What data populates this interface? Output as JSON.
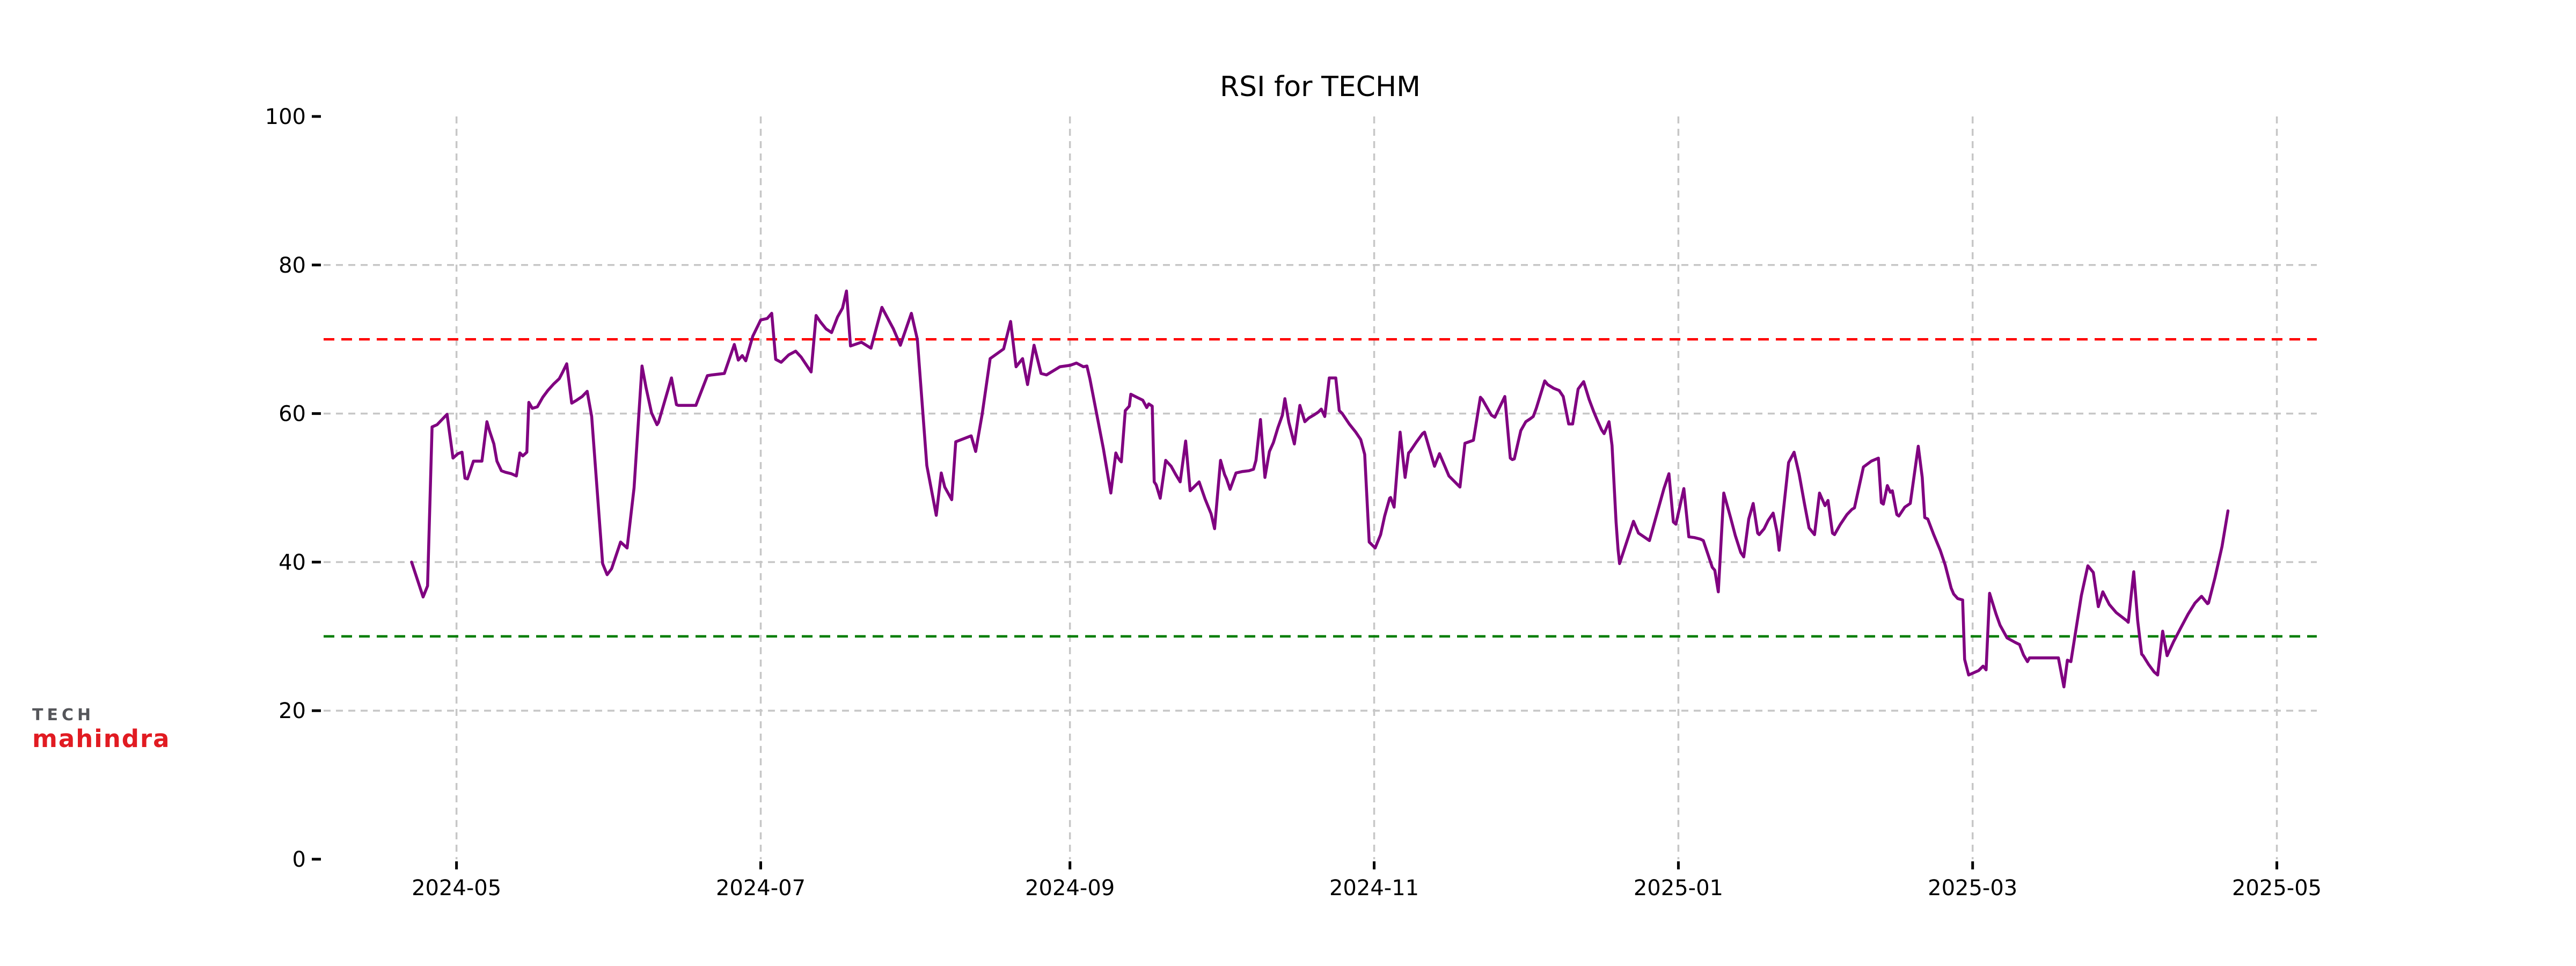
{
  "page": {
    "background": "#ffffff"
  },
  "logo": {
    "line1": "TECH",
    "line2": "mahindra",
    "line1_color": "#55565a",
    "line2_color": "#e11b22"
  },
  "chart_data": {
    "type": "line",
    "title": "RSI for TECHM",
    "series_name": "RSI",
    "line_color": "#800080",
    "grid": true,
    "gridline_color": "#c7c7c7",
    "overbought_line": {
      "value": 70,
      "color": "#ff0000",
      "style": "dashed"
    },
    "oversold_line": {
      "value": 30,
      "color": "#007d00",
      "style": "dashed"
    },
    "y_axis": {
      "min": 0,
      "max": 100,
      "tick_values": [
        0,
        20,
        40,
        60,
        80,
        100
      ],
      "gridline_values": [
        20,
        40,
        60,
        80
      ]
    },
    "x_axis": {
      "start_date": "2024-04-22",
      "end_date": "2025-04-21",
      "unit": "days_since_start_date",
      "ticks": [
        {
          "label": "2024-05",
          "date": "2024-05-01"
        },
        {
          "label": "2024-07",
          "date": "2024-07-01"
        },
        {
          "label": "2024-09",
          "date": "2024-09-01"
        },
        {
          "label": "2024-11",
          "date": "2024-11-01"
        },
        {
          "label": "2025-01",
          "date": "2025-01-01"
        },
        {
          "label": "2025-03",
          "date": "2025-03-01"
        },
        {
          "label": "2025-05",
          "date": "2025-05-01"
        }
      ]
    },
    "points": [
      [
        0,
        40
      ],
      [
        2.3,
        35.3
      ],
      [
        3.2,
        36.8
      ],
      [
        4.1,
        58.2
      ],
      [
        5.1,
        58.5
      ],
      [
        7.1,
        59.9
      ],
      [
        8.3,
        54
      ],
      [
        9.3,
        54.6
      ],
      [
        10.1,
        54.8
      ],
      [
        10.7,
        51.3
      ],
      [
        11.2,
        51.2
      ],
      [
        12.4,
        53.6
      ],
      [
        14.1,
        53.6
      ],
      [
        15.1,
        58.9
      ],
      [
        15.6,
        57.7
      ],
      [
        16.5,
        55.9
      ],
      [
        17.1,
        53.6
      ],
      [
        18,
        52.3
      ],
      [
        18.8,
        52.1
      ],
      [
        20,
        51.9
      ],
      [
        21,
        51.6
      ],
      [
        21.7,
        54.7
      ],
      [
        22.3,
        54.3
      ],
      [
        23.1,
        54.8
      ],
      [
        23.5,
        61.5
      ],
      [
        24.2,
        60.7
      ],
      [
        25.2,
        60.9
      ],
      [
        26.3,
        62.2
      ],
      [
        27.3,
        63.1
      ],
      [
        28.5,
        64
      ],
      [
        29.6,
        64.7
      ],
      [
        30.3,
        65.6
      ],
      [
        31.1,
        66.7
      ],
      [
        32.1,
        61.4
      ],
      [
        33.1,
        61.8
      ],
      [
        34.2,
        62.3
      ],
      [
        35.2,
        63
      ],
      [
        36.1,
        59.6
      ],
      [
        38.3,
        39.8
      ],
      [
        39.2,
        38.3
      ],
      [
        40.1,
        39.1
      ],
      [
        41.9,
        42.7
      ],
      [
        43.2,
        41.9
      ],
      [
        44.6,
        50
      ],
      [
        46.2,
        66.4
      ],
      [
        47,
        63.5
      ],
      [
        48.1,
        60.1
      ],
      [
        49.2,
        58.5
      ],
      [
        49.5,
        58.8
      ],
      [
        52.1,
        64.8
      ],
      [
        53.1,
        61.2
      ],
      [
        53.5,
        61.1
      ],
      [
        57,
        61.1
      ],
      [
        59.3,
        65.1
      ],
      [
        60.2,
        65.2
      ],
      [
        62.7,
        65.4
      ],
      [
        64.7,
        69.3
      ],
      [
        65.5,
        67.2
      ],
      [
        66.3,
        67.8
      ],
      [
        67,
        67.1
      ],
      [
        68.4,
        70.4
      ],
      [
        70,
        72.6
      ],
      [
        71.3,
        72.8
      ],
      [
        72.2,
        73.5
      ],
      [
        73,
        67.3
      ],
      [
        74.1,
        66.9
      ],
      [
        75.6,
        67.9
      ],
      [
        77,
        68.4
      ],
      [
        78.1,
        67.6
      ],
      [
        80.1,
        65.6
      ],
      [
        81.1,
        73.2
      ],
      [
        81.9,
        72.4
      ],
      [
        83.1,
        71.4
      ],
      [
        84.2,
        70.9
      ],
      [
        85.4,
        73
      ],
      [
        86.4,
        74.2
      ],
      [
        87.2,
        76.5
      ],
      [
        88,
        69.1
      ],
      [
        90.2,
        69.6
      ],
      [
        92.1,
        68.8
      ],
      [
        94.3,
        74.3
      ],
      [
        96.6,
        71.4
      ],
      [
        98,
        69.2
      ],
      [
        100.2,
        73.5
      ],
      [
        101.4,
        70
      ],
      [
        103.3,
        53
      ],
      [
        105.2,
        46.3
      ],
      [
        106.2,
        52
      ],
      [
        106.9,
        50.1
      ],
      [
        108.3,
        48.4
      ],
      [
        109.1,
        56.2
      ],
      [
        112.2,
        57
      ],
      [
        113.1,
        54.9
      ],
      [
        114.4,
        59.9
      ],
      [
        116,
        67.4
      ],
      [
        118.7,
        68.7
      ],
      [
        120.1,
        72.4
      ],
      [
        121.2,
        66.3
      ],
      [
        122.5,
        67.4
      ],
      [
        123.5,
        63.9
      ],
      [
        124.8,
        69.2
      ],
      [
        126.2,
        65.4
      ],
      [
        127.3,
        65.2
      ],
      [
        130,
        66.3
      ],
      [
        132.1,
        66.5
      ],
      [
        133.3,
        66.8
      ],
      [
        134.7,
        66.3
      ],
      [
        135.4,
        66.4
      ],
      [
        136,
        64.7
      ],
      [
        137.4,
        59.8
      ],
      [
        138.7,
        55.3
      ],
      [
        140.2,
        49.3
      ],
      [
        141.2,
        54.7
      ],
      [
        141.6,
        54.1
      ],
      [
        142,
        53.7
      ],
      [
        142.3,
        53.5
      ],
      [
        143.1,
        60.4
      ],
      [
        143.9,
        61
      ],
      [
        144.2,
        62.6
      ],
      [
        145.4,
        62.2
      ],
      [
        146.6,
        61.8
      ],
      [
        147.4,
        60.8
      ],
      [
        147.8,
        61.3
      ],
      [
        148.5,
        61
      ],
      [
        148.9,
        50.8
      ],
      [
        149.3,
        50.4
      ],
      [
        150.1,
        48.6
      ],
      [
        151.2,
        53.7
      ],
      [
        152.3,
        52.9
      ],
      [
        153.2,
        51.8
      ],
      [
        154.1,
        50.8
      ],
      [
        155.2,
        56.3
      ],
      [
        156.1,
        49.6
      ],
      [
        157,
        50.2
      ],
      [
        157.9,
        50.8
      ],
      [
        159.1,
        48.5
      ],
      [
        160.3,
        46.5
      ],
      [
        161,
        44.5
      ],
      [
        162.2,
        53.7
      ],
      [
        163,
        51.8
      ],
      [
        163.4,
        51.2
      ],
      [
        164.1,
        49.8
      ],
      [
        165.3,
        52
      ],
      [
        166.6,
        52.2
      ],
      [
        167.9,
        52.3
      ],
      [
        168.8,
        52.5
      ],
      [
        169.3,
        53.7
      ],
      [
        170.2,
        59.2
      ],
      [
        171.1,
        51.4
      ],
      [
        172,
        54.9
      ],
      [
        172.8,
        56.1
      ],
      [
        173.7,
        58.1
      ],
      [
        174.6,
        59.8
      ],
      [
        175.1,
        62
      ],
      [
        175.9,
        58.8
      ],
      [
        177,
        55.9
      ],
      [
        178.1,
        61.1
      ],
      [
        179.1,
        58.9
      ],
      [
        179.9,
        59.4
      ],
      [
        180.9,
        59.8
      ],
      [
        181.8,
        60.2
      ],
      [
        182.4,
        60.6
      ],
      [
        183.1,
        59.6
      ],
      [
        184,
        64.8
      ],
      [
        185.3,
        64.8
      ],
      [
        186,
        60.4
      ],
      [
        186.6,
        60
      ],
      [
        188,
        58.6
      ],
      [
        189.3,
        57.5
      ],
      [
        190.3,
        56.5
      ],
      [
        191.1,
        54.5
      ],
      [
        192,
        42.7
      ],
      [
        193.2,
        41.9
      ],
      [
        194.3,
        43.7
      ],
      [
        195.1,
        46.2
      ],
      [
        196.1,
        48.6
      ],
      [
        196.3,
        48.7
      ],
      [
        197,
        47.4
      ],
      [
        198.2,
        57.5
      ],
      [
        199.2,
        51.4
      ],
      [
        199.9,
        54.7
      ],
      [
        200.2,
        54.9
      ],
      [
        201.4,
        56.1
      ],
      [
        202.7,
        57.3
      ],
      [
        203.1,
        57.5
      ],
      [
        205.1,
        52.9
      ],
      [
        206.1,
        54.6
      ],
      [
        208,
        51.6
      ],
      [
        210.2,
        50.1
      ],
      [
        211.2,
        56
      ],
      [
        212.9,
        56.4
      ],
      [
        214.3,
        62.2
      ],
      [
        214.7,
        61.9
      ],
      [
        216.5,
        59.8
      ],
      [
        217.2,
        59.5
      ],
      [
        219.2,
        62.3
      ],
      [
        220.3,
        54
      ],
      [
        220.7,
        53.8
      ],
      [
        221.1,
        53.9
      ],
      [
        222.4,
        57.7
      ],
      [
        223.4,
        58.9
      ],
      [
        224.3,
        59.3
      ],
      [
        224.9,
        59.6
      ],
      [
        225.5,
        60.7
      ],
      [
        227.2,
        64.4
      ],
      [
        227.8,
        63.9
      ],
      [
        229,
        63.4
      ],
      [
        230.1,
        63.1
      ],
      [
        230.9,
        62.3
      ],
      [
        232,
        58.6
      ],
      [
        232.8,
        58.6
      ],
      [
        233.9,
        63.3
      ],
      [
        235,
        64.3
      ],
      [
        236.1,
        61.9
      ],
      [
        237,
        60.3
      ],
      [
        237.8,
        59
      ],
      [
        238.6,
        57.8
      ],
      [
        239.1,
        57.3
      ],
      [
        240.1,
        58.9
      ],
      [
        240.7,
        55.7
      ],
      [
        241.5,
        45.4
      ],
      [
        241.9,
        41.7
      ],
      [
        242.2,
        39.8
      ],
      [
        245,
        45.5
      ],
      [
        246,
        43.9
      ],
      [
        247.1,
        43.4
      ],
      [
        248.2,
        42.9
      ],
      [
        251.1,
        49.9
      ],
      [
        252.1,
        51.9
      ],
      [
        253,
        45.4
      ],
      [
        253.5,
        45.1
      ],
      [
        255.1,
        49.9
      ],
      [
        256.1,
        43.4
      ],
      [
        257.2,
        43.3
      ],
      [
        258.4,
        43.1
      ],
      [
        259,
        42.9
      ],
      [
        260,
        40.9
      ],
      [
        260.8,
        39.3
      ],
      [
        261.3,
        38.9
      ],
      [
        262,
        36
      ],
      [
        263.1,
        49.3
      ],
      [
        264.5,
        45.9
      ],
      [
        265.4,
        43.6
      ],
      [
        266.5,
        41.3
      ],
      [
        267.1,
        40.7
      ],
      [
        268.1,
        45.8
      ],
      [
        269,
        47.9
      ],
      [
        269.9,
        43.9
      ],
      [
        270.2,
        43.7
      ],
      [
        271.2,
        44.5
      ],
      [
        272,
        45.6
      ],
      [
        273,
        46.6
      ],
      [
        273.8,
        44
      ],
      [
        274.2,
        41.6
      ],
      [
        276.1,
        53.4
      ],
      [
        277.2,
        54.8
      ],
      [
        278.2,
        51.9
      ],
      [
        279.3,
        47.8
      ],
      [
        280.2,
        44.6
      ],
      [
        281.3,
        43.7
      ],
      [
        282.3,
        49.3
      ],
      [
        283.4,
        47.6
      ],
      [
        284,
        48.3
      ],
      [
        284.9,
        43.9
      ],
      [
        285.3,
        43.7
      ],
      [
        286.5,
        45.1
      ],
      [
        287.8,
        46.4
      ],
      [
        288.8,
        47.1
      ],
      [
        289.3,
        47.3
      ],
      [
        291.1,
        52.8
      ],
      [
        292.7,
        53.6
      ],
      [
        294.1,
        54
      ],
      [
        294.7,
        48
      ],
      [
        295.1,
        47.8
      ],
      [
        295.9,
        50.3
      ],
      [
        296.5,
        49.4
      ],
      [
        296.9,
        49.6
      ],
      [
        297.8,
        46.4
      ],
      [
        298.2,
        46.2
      ],
      [
        299.4,
        47.4
      ],
      [
        300.5,
        47.9
      ],
      [
        302.1,
        55.6
      ],
      [
        302.9,
        51.4
      ],
      [
        303.4,
        46
      ],
      [
        304,
        45.8
      ],
      [
        305.2,
        43.7
      ],
      [
        306.5,
        41.6
      ],
      [
        307.5,
        39.6
      ],
      [
        308.7,
        36.5
      ],
      [
        309.2,
        35.7
      ],
      [
        310,
        35.1
      ],
      [
        311,
        34.9
      ],
      [
        311.4,
        26.9
      ],
      [
        312.2,
        24.8
      ],
      [
        314.2,
        25.4
      ],
      [
        315.1,
        26
      ],
      [
        315.7,
        25.5
      ],
      [
        316.4,
        35.8
      ],
      [
        317.7,
        33
      ],
      [
        318.5,
        31.5
      ],
      [
        319.9,
        29.8
      ],
      [
        321.5,
        29.2
      ],
      [
        322.4,
        28.9
      ],
      [
        323.2,
        27.5
      ],
      [
        324,
        26.6
      ],
      [
        324.4,
        27.1
      ],
      [
        326.4,
        27.1
      ],
      [
        328.5,
        27.1
      ],
      [
        330.2,
        27.1
      ],
      [
        331.3,
        23.2
      ],
      [
        332,
        26.8
      ],
      [
        332.7,
        26.6
      ],
      [
        333.6,
        30.4
      ],
      [
        334.8,
        35.5
      ],
      [
        336.1,
        39.5
      ],
      [
        337.2,
        38.6
      ],
      [
        338.2,
        34
      ],
      [
        339.1,
        36
      ],
      [
        340.4,
        34.3
      ],
      [
        341.8,
        33.2
      ],
      [
        343.9,
        32.1
      ],
      [
        344.2,
        31.9
      ],
      [
        345.3,
        38.7
      ],
      [
        346.1,
        32.1
      ],
      [
        346.9,
        27.6
      ],
      [
        347.2,
        27.4
      ],
      [
        348.3,
        26.2
      ],
      [
        349.4,
        25.2
      ],
      [
        350.1,
        24.8
      ],
      [
        351.1,
        30.7
      ],
      [
        352,
        27.4
      ],
      [
        353.3,
        29.3
      ],
      [
        354.7,
        31.1
      ],
      [
        356.2,
        33
      ],
      [
        357.6,
        34.5
      ],
      [
        358.9,
        35.4
      ],
      [
        360.1,
        34.4
      ],
      [
        360.3,
        34.5
      ],
      [
        361.6,
        37.9
      ],
      [
        363,
        42.1
      ],
      [
        364.2,
        46.9
      ]
    ]
  }
}
